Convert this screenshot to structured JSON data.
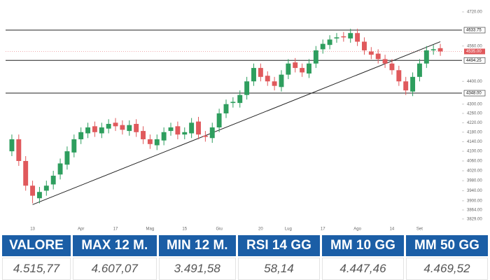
{
  "chart_data": {
    "type": "candlestick",
    "categories": [
      null,
      null,
      null,
      "13",
      null,
      null,
      null,
      null,
      null,
      null,
      "Apr",
      null,
      null,
      null,
      null,
      "17",
      null,
      null,
      null,
      null,
      "Mag",
      null,
      null,
      null,
      null,
      "15",
      null,
      null,
      null,
      null,
      "Giu",
      null,
      null,
      null,
      null,
      null,
      "20",
      null,
      null,
      null,
      "Lug",
      null,
      null,
      null,
      null,
      "17",
      null,
      null,
      null,
      null,
      "Ago",
      null,
      null,
      null,
      null,
      "14",
      null,
      null,
      null,
      "Set",
      null,
      null,
      null
    ],
    "open": [
      4100,
      4150,
      4060,
      3960,
      3910,
      3940,
      3965,
      4005,
      4045,
      4095,
      4150,
      4175,
      4205,
      4175,
      4195,
      4220,
      4210,
      4185,
      4215,
      4185,
      4150,
      4125,
      4145,
      4185,
      4205,
      4170,
      4175,
      4225,
      4165,
      4155,
      4200,
      4260,
      4305,
      4305,
      4340,
      4400,
      4460,
      4425,
      4400,
      4375,
      4430,
      4485,
      4460,
      4435,
      4480,
      4545,
      4565,
      4595,
      4605,
      4595,
      4620,
      4580,
      4535,
      4525,
      4500,
      4480,
      4450,
      4400,
      4355,
      4420,
      4480,
      4540,
      4550
    ],
    "high": [
      4170,
      4170,
      4080,
      3980,
      3955,
      3980,
      4020,
      4070,
      4120,
      4170,
      4200,
      4220,
      4225,
      4220,
      4235,
      4240,
      4230,
      4230,
      4235,
      4205,
      4170,
      4170,
      4200,
      4220,
      4225,
      4200,
      4240,
      4245,
      4185,
      4220,
      4280,
      4320,
      4330,
      4360,
      4420,
      4480,
      4480,
      4445,
      4420,
      4450,
      4500,
      4505,
      4480,
      4500,
      4560,
      4590,
      4610,
      4620,
      4625,
      4640,
      4640,
      4600,
      4555,
      4545,
      4520,
      4500,
      4470,
      4420,
      4440,
      4500,
      4560,
      4565,
      4570
    ],
    "low": [
      4080,
      4040,
      3940,
      3890,
      3890,
      3920,
      3945,
      3985,
      4025,
      4075,
      4130,
      4155,
      4160,
      4155,
      4175,
      4185,
      4170,
      4165,
      4160,
      4130,
      4110,
      4105,
      4125,
      4165,
      4150,
      4150,
      4155,
      4150,
      4140,
      4135,
      4180,
      4240,
      4285,
      4285,
      4320,
      4380,
      4400,
      4380,
      4360,
      4355,
      4410,
      4440,
      4420,
      4415,
      4460,
      4525,
      4545,
      4575,
      4580,
      4575,
      4560,
      4520,
      4500,
      4480,
      4460,
      4430,
      4380,
      4340,
      4335,
      4400,
      4460,
      4520,
      4515
    ],
    "close": [
      4150,
      4060,
      3960,
      3920,
      3935,
      3960,
      4000,
      4050,
      4100,
      4150,
      4180,
      4200,
      4180,
      4200,
      4215,
      4205,
      4190,
      4210,
      4180,
      4150,
      4130,
      4150,
      4180,
      4200,
      4170,
      4180,
      4220,
      4170,
      4160,
      4200,
      4260,
      4300,
      4310,
      4340,
      4400,
      4460,
      4420,
      4400,
      4380,
      4430,
      4480,
      4460,
      4440,
      4480,
      4540,
      4570,
      4590,
      4600,
      4600,
      4620,
      4580,
      4540,
      4520,
      4500,
      4480,
      4450,
      4400,
      4360,
      4420,
      4480,
      4540,
      4545,
      4535
    ],
    "up_color": "#2e9e5e",
    "down_color": "#e0595c",
    "log_scale": true,
    "ylim": [
      3815,
      4750
    ],
    "yticks": [
      {
        "value": 4720,
        "label": "4720.00"
      },
      {
        "value": 4560,
        "label": "4560.00"
      },
      {
        "value": 4400,
        "label": "4400.00"
      },
      {
        "value": 4300,
        "label": "4300.00"
      },
      {
        "value": 4260,
        "label": "4260.00"
      },
      {
        "value": 4220,
        "label": "4220.00"
      },
      {
        "value": 4180,
        "label": "4180.00"
      },
      {
        "value": 4140,
        "label": "4140.00"
      },
      {
        "value": 4100,
        "label": "4100.00"
      },
      {
        "value": 4060,
        "label": "4060.00"
      },
      {
        "value": 4020,
        "label": "4020.00"
      },
      {
        "value": 3980,
        "label": "3980.00"
      },
      {
        "value": 3940,
        "label": "3940.00"
      },
      {
        "value": 3900,
        "label": "3900.00"
      },
      {
        "value": 3864,
        "label": "3864.00"
      },
      {
        "value": 3829,
        "label": "3829.00"
      }
    ],
    "levels": [
      {
        "value": 4633.75,
        "label": "4633.75"
      },
      {
        "value": 4494.25,
        "label": "4494.25"
      },
      {
        "value": 4348,
        "label": "4348.00"
      }
    ],
    "last_price": {
      "value": 4535,
      "label": "4535.00"
    },
    "trendline": {
      "x": [
        3,
        62
      ],
      "values": [
        3885,
        4580
      ]
    }
  },
  "table": {
    "headers": [
      "VALORE",
      "MAX 12 M.",
      "MIN 12 M.",
      "RSI 14 GG",
      "MM 10 GG",
      "MM 50 GG"
    ],
    "rows": [
      [
        "4.515,77",
        "4.607,07",
        "3.491,58",
        "58,14",
        "4.447,46",
        "4.469,52"
      ]
    ]
  }
}
